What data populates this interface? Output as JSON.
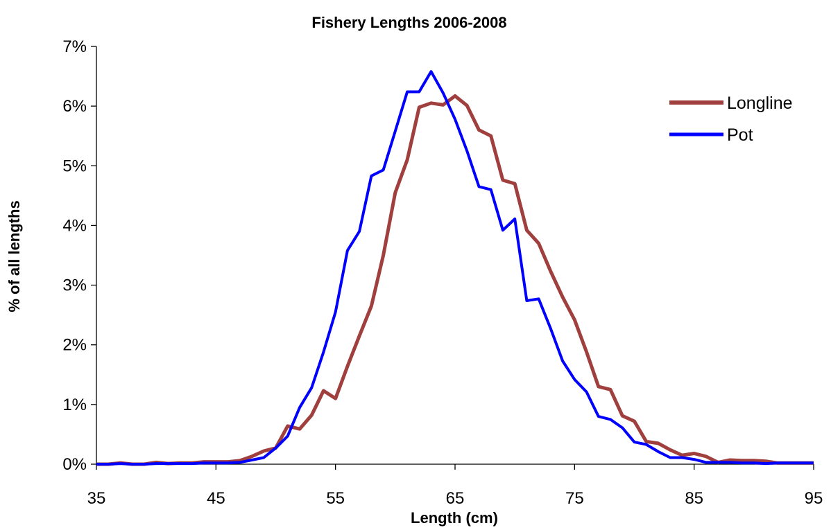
{
  "chart_data": {
    "type": "line",
    "title": "Fishery Lengths 2006-2008",
    "xlabel": "Length (cm)",
    "ylabel": "% of all lengths",
    "xlim": [
      35,
      95
    ],
    "ylim": [
      0,
      0.07
    ],
    "xticks": [
      35,
      45,
      55,
      65,
      75,
      85,
      95
    ],
    "xtick_labels": [
      "35",
      "45",
      "55",
      "65",
      "75",
      "85",
      "95"
    ],
    "yticks": [
      0,
      0.01,
      0.02,
      0.03,
      0.04,
      0.05,
      0.06,
      0.07
    ],
    "ytick_labels": [
      "0%",
      "1%",
      "2%",
      "3%",
      "4%",
      "5%",
      "6%",
      "7%"
    ],
    "grid": false,
    "legend_position": "top-right",
    "series": [
      {
        "name": "Longline",
        "color": "#a0403e",
        "x": [
          35,
          36,
          37,
          38,
          39,
          40,
          41,
          42,
          43,
          44,
          45,
          46,
          47,
          48,
          49,
          50,
          51,
          52,
          53,
          54,
          55,
          56,
          57,
          58,
          59,
          60,
          61,
          62,
          63,
          64,
          65,
          66,
          67,
          68,
          69,
          70,
          71,
          72,
          73,
          74,
          75,
          76,
          77,
          78,
          79,
          80,
          81,
          82,
          83,
          84,
          85,
          86,
          87,
          88,
          89,
          90,
          91,
          92,
          93,
          94,
          95
        ],
        "y": [
          0,
          0,
          0.0002,
          0,
          0,
          0.0003,
          0.0001,
          0.0002,
          0.0002,
          0.0004,
          0.0004,
          0.0004,
          0.0006,
          0.0013,
          0.0022,
          0.0027,
          0.0064,
          0.0059,
          0.0082,
          0.0123,
          0.011,
          0.0164,
          0.0215,
          0.0265,
          0.035,
          0.0455,
          0.051,
          0.0598,
          0.0605,
          0.0602,
          0.0617,
          0.0601,
          0.056,
          0.055,
          0.0476,
          0.047,
          0.0392,
          0.037,
          0.0323,
          0.028,
          0.0242,
          0.0188,
          0.013,
          0.0125,
          0.0081,
          0.0072,
          0.0038,
          0.0035,
          0.0024,
          0.0015,
          0.0018,
          0.0013,
          0.0003,
          0.0007,
          0.0006,
          0.0006,
          0.0005,
          0.0002,
          0.0002,
          0.0002,
          0.0002
        ]
      },
      {
        "name": "Pot",
        "color": "#0000ff",
        "x": [
          35,
          36,
          37,
          38,
          39,
          40,
          41,
          42,
          43,
          44,
          45,
          46,
          47,
          48,
          49,
          50,
          51,
          52,
          53,
          54,
          55,
          56,
          57,
          58,
          59,
          60,
          61,
          62,
          63,
          64,
          65,
          66,
          67,
          68,
          69,
          70,
          71,
          72,
          73,
          74,
          75,
          76,
          77,
          78,
          79,
          80,
          81,
          82,
          83,
          84,
          85,
          86,
          87,
          88,
          89,
          90,
          91,
          92,
          93,
          94,
          95
        ],
        "y": [
          0,
          0,
          0.0001,
          0,
          0,
          0.0001,
          0.0001,
          0.0001,
          0.0001,
          0.0002,
          0.0002,
          0.0002,
          0.0003,
          0.0007,
          0.0011,
          0.0027,
          0.0047,
          0.0095,
          0.0128,
          0.0188,
          0.0255,
          0.0358,
          0.039,
          0.0483,
          0.0493,
          0.0558,
          0.0624,
          0.0624,
          0.0658,
          0.0622,
          0.0578,
          0.0525,
          0.0465,
          0.046,
          0.0392,
          0.0411,
          0.0274,
          0.0277,
          0.0227,
          0.0173,
          0.0142,
          0.0121,
          0.008,
          0.0075,
          0.0061,
          0.0037,
          0.0033,
          0.0021,
          0.0011,
          0.0011,
          0.0008,
          0.0003,
          0.0003,
          0.0003,
          0.0002,
          0.0002,
          0.0001,
          0.0002,
          0.0002,
          0.0002,
          0.0002
        ]
      }
    ]
  }
}
